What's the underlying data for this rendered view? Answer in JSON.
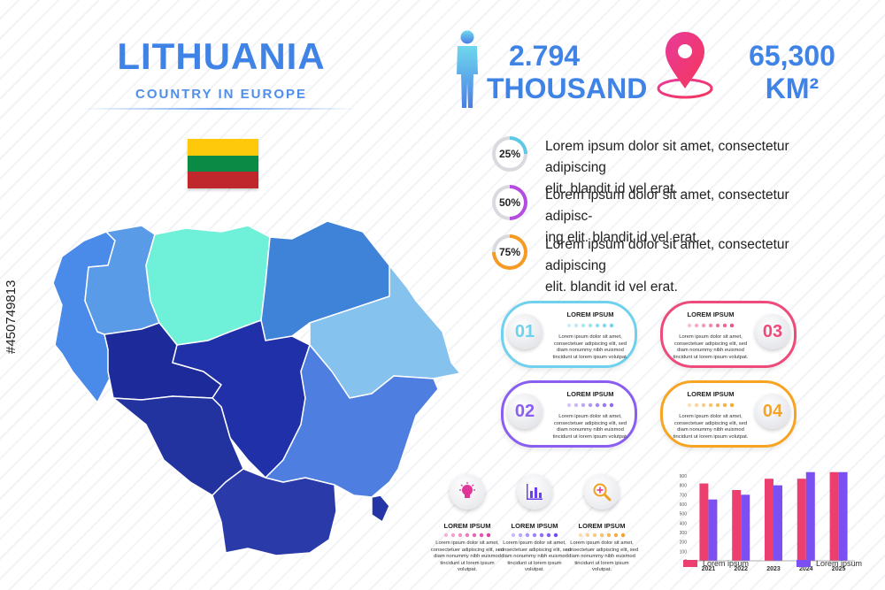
{
  "header": {
    "title": "LITHUANIA",
    "subtitle": "COUNTRY IN EUROPE"
  },
  "flag": {
    "colors": [
      "#fdc90a",
      "#0a8a45",
      "#c0272d"
    ]
  },
  "stats": {
    "population": {
      "value": "2.794",
      "unit": "THOUSAND",
      "icon": "person-icon"
    },
    "area": {
      "value": "65,300",
      "unit": "KM²",
      "icon": "map-pin-icon"
    }
  },
  "percent_items": [
    {
      "pct": 25,
      "label": "25%",
      "color": "#5ec8e6",
      "text_line1": "Lorem ipsum dolor sit amet, consectetur adipiscing",
      "text_line2": "elit. blandit id vel erat."
    },
    {
      "pct": 50,
      "label": "50%",
      "color": "#b44ce0",
      "text_line1": "Lorem ipsum dolor sit amet, consectetur adipisc-",
      "text_line2": "ing elit. blandit id vel erat."
    },
    {
      "pct": 75,
      "label": "75%",
      "color": "#f59a23",
      "text_line1": "Lorem ipsum dolor sit amet, consectetur adipiscing",
      "text_line2": "elit. blandit id vel erat."
    }
  ],
  "cards": [
    {
      "num": "01",
      "color": "#6fd1ee",
      "heading": "LOREM IPSUM",
      "body": [
        "Lorem ipsum dolor sit amet,",
        "consectetuer adipiscing elit, sed",
        "diam nonummy nibh euismod",
        "tincidunt ut lorem ipsum volutpat."
      ]
    },
    {
      "num": "03",
      "color": "#ee4a7a",
      "heading": "LOREM IPSUM",
      "body": [
        "Lorem ipsum dolor sit amet,",
        "consectetuer adipiscing elit, sed",
        "diam nonummy nibh euismod",
        "tincidunt ut lorem ipsum volutpat."
      ]
    },
    {
      "num": "02",
      "color": "#8a5ef0",
      "heading": "LOREM IPSUM",
      "body": [
        "Lorem ipsum dolor sit amet,",
        "consectetuer adipiscing elit, sed",
        "diam nonummy nibh euismod",
        "tincidunt ut lorem ipsum volutpat."
      ]
    },
    {
      "num": "04",
      "color": "#f7a423",
      "heading": "LOREM IPSUM",
      "body": [
        "Lorem ipsum dolor sit amet,",
        "consectetuer adipiscing elit, sed",
        "diam nonummy nibh euismod",
        "tincidunt ut lorem ipsum volutpat."
      ]
    }
  ],
  "icon_items": [
    {
      "icon": "lightbulb-icon",
      "color": "#e0369a",
      "heading": "LOREM IPSUM",
      "body": [
        "Lorem ipsum dolor sit amet,",
        "consectetuer adipiscing elit, sed",
        "diam nonummy nibh euismod",
        "tincidunt ut lorem ipsum volutpat."
      ]
    },
    {
      "icon": "bar-chart-icon",
      "color": "#6c3ff0",
      "heading": "LOREM IPSUM",
      "body": [
        "Lorem ipsum dolor sit amet,",
        "consectetuer adipiscing elit, sed",
        "diam nonummy nibh euismod",
        "tincidunt ut lorem ipsum volutpat."
      ]
    },
    {
      "icon": "magnifier-plus-icon",
      "color": "#f0a020",
      "heading": "LOREM IPSUM",
      "body": [
        "Lorem ipsum dolor sit amet,",
        "consectetuer adipiscing elit, sed",
        "diam nonummy nibh euismod",
        "tincidunt ut lorem ipsum volutpat."
      ]
    }
  ],
  "chart_data": {
    "type": "bar",
    "categories": [
      "2021",
      "2022",
      "2023",
      "2024",
      "2025"
    ],
    "series": [
      {
        "name": "Lorem ipsum",
        "color": "#ec3f70",
        "values": [
          820,
          750,
          870,
          870,
          940
        ]
      },
      {
        "name": "Lorem ipsum",
        "color": "#7b4ff2",
        "values": [
          650,
          700,
          800,
          940,
          940
        ]
      }
    ],
    "yticks": [
      "0",
      "100",
      "200",
      "300",
      "400",
      "500",
      "600",
      "700",
      "800",
      "900"
    ],
    "ylim": [
      0,
      900
    ],
    "grid": false,
    "legend": "bottom"
  },
  "watermark": "#450749813",
  "map": {
    "region_colors": [
      "#4a8bea",
      "#5a9be8",
      "#6ff0d8",
      "#3f83d8",
      "#86c2ee",
      "#1c2a9a",
      "#1f30a8",
      "#22329f",
      "#2a3aa8",
      "#4d7ee0",
      "#2436a6"
    ]
  }
}
